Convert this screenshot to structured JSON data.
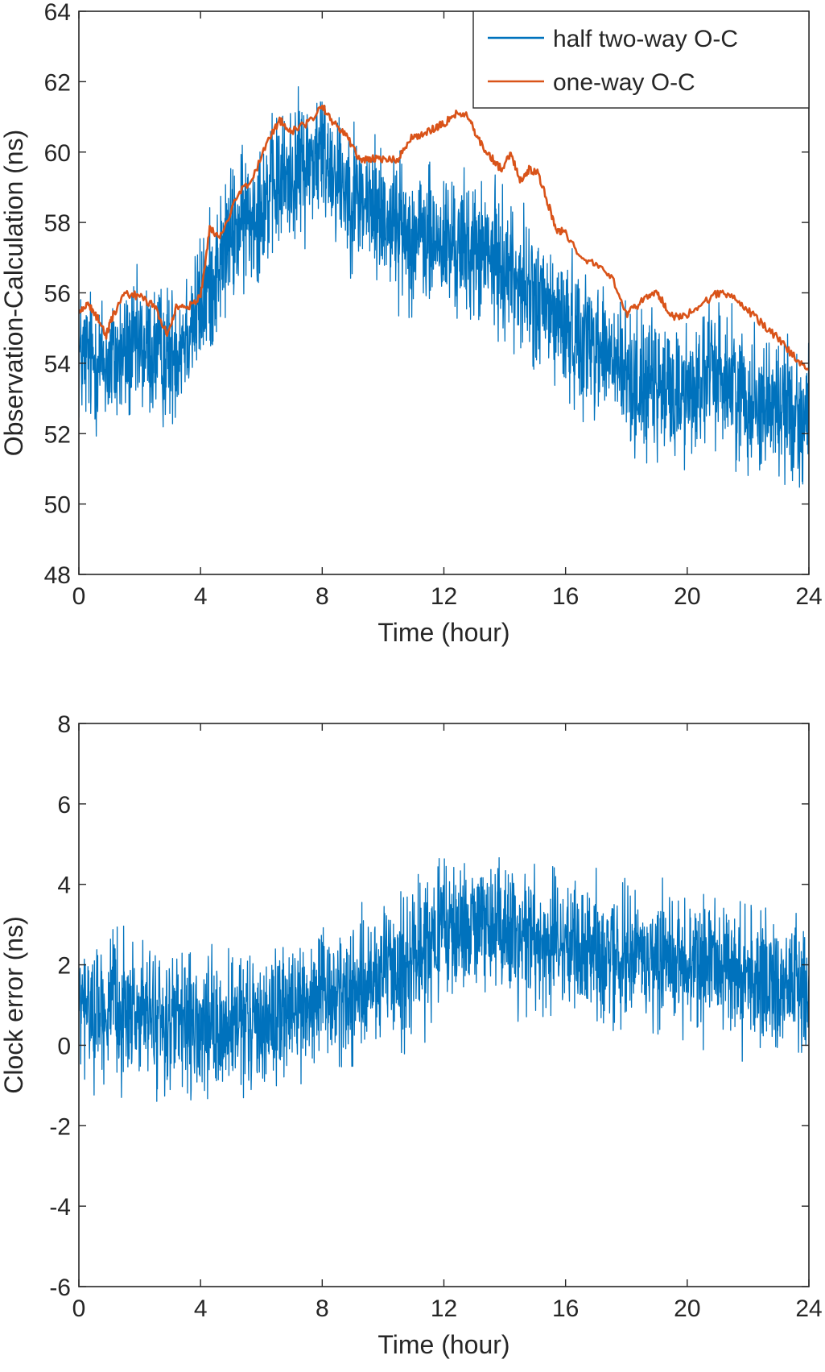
{
  "colors": {
    "half_two_way": "#0072BD",
    "one_way": "#D95319",
    "axis": "#262626",
    "background": "#ffffff"
  },
  "chart_data": [
    {
      "type": "line",
      "id": "top",
      "xlabel": "Time (hour)",
      "ylabel": "Observation-Calculation (ns)",
      "xlim": [
        0,
        24
      ],
      "ylim": [
        48,
        64
      ],
      "xticks": [
        0,
        4,
        8,
        12,
        16,
        20,
        24
      ],
      "yticks": [
        48,
        50,
        52,
        54,
        56,
        58,
        60,
        62,
        64
      ],
      "legend": {
        "position": "top-right",
        "entries": [
          "half two-way O-C",
          "one-way O-C"
        ]
      },
      "series": [
        {
          "name": "half two-way O-C",
          "color": "#0072BD",
          "trend_x": [
            0,
            1,
            2,
            3,
            4,
            5,
            6,
            7,
            8,
            9,
            10,
            11,
            12,
            13,
            14,
            15,
            16,
            17,
            18,
            19,
            20,
            21,
            22,
            23,
            24
          ],
          "trend_y": [
            54.2,
            54.0,
            54.4,
            54.2,
            55.6,
            57.6,
            58.6,
            59.4,
            60.0,
            58.8,
            58.2,
            57.6,
            57.4,
            57.2,
            56.8,
            55.8,
            55.0,
            54.6,
            53.6,
            53.2,
            53.2,
            53.8,
            53.0,
            52.8,
            52.4
          ],
          "noise_amplitude": 1.9,
          "samples": 2400
        },
        {
          "name": "one-way O-C",
          "color": "#D95319",
          "x": [
            0,
            0.3,
            0.6,
            0.9,
            1.1,
            1.5,
            2.0,
            2.5,
            2.9,
            3.2,
            3.6,
            4.0,
            4.3,
            4.7,
            5.2,
            5.7,
            6.2,
            6.6,
            7.0,
            7.5,
            8.0,
            8.4,
            8.8,
            9.2,
            9.6,
            10.0,
            10.5,
            10.9,
            11.3,
            11.7,
            12.0,
            12.4,
            12.8,
            13.1,
            13.5,
            13.9,
            14.2,
            14.5,
            14.8,
            15.1,
            15.4,
            15.7,
            16.0,
            16.5,
            17.0,
            17.5,
            18.0,
            18.3,
            18.7,
            19.0,
            19.3,
            19.6,
            20.0,
            20.5,
            21.0,
            21.5,
            22.0,
            22.5,
            23.0,
            23.5,
            24.0
          ],
          "y": [
            55.4,
            55.7,
            55.3,
            54.8,
            55.3,
            56.0,
            55.9,
            55.6,
            54.8,
            55.6,
            55.6,
            55.9,
            57.8,
            57.6,
            58.8,
            59.2,
            60.3,
            60.9,
            60.6,
            60.8,
            61.3,
            60.8,
            60.5,
            59.8,
            59.8,
            59.8,
            59.8,
            60.4,
            60.5,
            60.7,
            60.8,
            61.1,
            61.0,
            60.4,
            59.9,
            59.5,
            60.0,
            59.2,
            59.5,
            59.4,
            58.6,
            57.8,
            57.7,
            57.0,
            56.8,
            56.5,
            55.4,
            55.6,
            55.9,
            56.0,
            55.6,
            55.3,
            55.4,
            55.7,
            56.0,
            55.9,
            55.5,
            55.1,
            54.7,
            54.2,
            53.8
          ]
        }
      ]
    },
    {
      "type": "line",
      "id": "bottom",
      "xlabel": "Time (hour)",
      "ylabel": "Clock error (ns)",
      "xlim": [
        0,
        24
      ],
      "ylim": [
        -6,
        8
      ],
      "xticks": [
        0,
        4,
        8,
        12,
        16,
        20,
        24
      ],
      "yticks": [
        -6,
        -4,
        -2,
        0,
        2,
        4,
        6,
        8
      ],
      "series": [
        {
          "name": "clock error",
          "color": "#0072BD",
          "trend_x": [
            0,
            1,
            2,
            3,
            4,
            5,
            6,
            7,
            8,
            9,
            10,
            11,
            12,
            13,
            14,
            15,
            16,
            17,
            18,
            19,
            20,
            21,
            22,
            23,
            24
          ],
          "trend_y": [
            0.9,
            0.9,
            0.8,
            0.5,
            0.3,
            0.4,
            0.6,
            0.9,
            1.1,
            1.3,
            1.6,
            2.2,
            2.8,
            3.0,
            2.9,
            2.7,
            2.4,
            2.3,
            2.2,
            2.2,
            2.1,
            1.9,
            1.7,
            1.5,
            1.4
          ],
          "noise_amplitude": 1.6,
          "samples": 2400
        }
      ]
    }
  ]
}
